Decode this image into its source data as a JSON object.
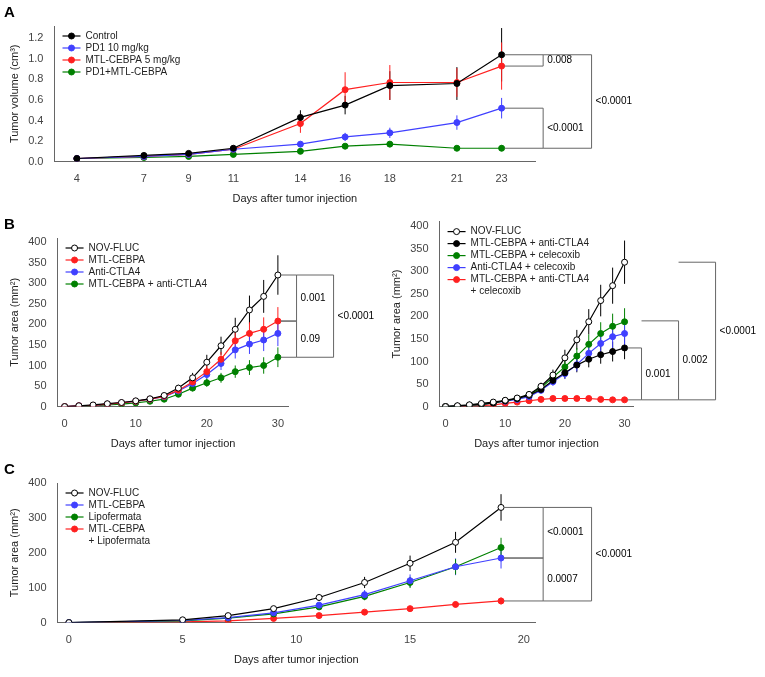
{
  "chart_data": [
    {
      "type": "line",
      "title": "A",
      "xlabel": "Days after tumor injection",
      "ylabel": "Tumor volume (cm³)",
      "x": [
        4,
        7,
        9,
        11,
        14,
        16,
        18,
        21,
        23
      ],
      "xlim": [
        3,
        24.5
      ],
      "xticks": [
        4,
        7,
        9,
        11,
        14,
        16,
        18,
        21,
        23
      ],
      "ylim": [
        0,
        1.32
      ],
      "yticks": [
        {
          "value": 0.0,
          "label": "0.0"
        },
        0.2,
        0.4,
        0.6,
        0.8,
        {
          "value": 1.0,
          "label": "1.0"
        },
        1.2
      ],
      "grid": false,
      "legend": "upper left",
      "series": [
        {
          "name": "Control",
          "color": "#000000",
          "marker": "circle",
          "values": [
            0.03,
            0.06,
            0.08,
            0.13,
            0.43,
            0.55,
            0.74,
            0.76,
            1.04
          ],
          "yerr": [
            0.005,
            0.01,
            0.012,
            0.02,
            0.07,
            0.09,
            0.14,
            0.16,
            0.26
          ]
        },
        {
          "name": "PD1 10 mg/kg",
          "color": "#4040FF",
          "marker": "circle",
          "values": [
            0.03,
            0.05,
            0.07,
            0.12,
            0.17,
            0.24,
            0.28,
            0.38,
            0.52
          ],
          "yerr": [
            0.005,
            0.007,
            0.01,
            0.015,
            0.025,
            0.04,
            0.05,
            0.07,
            0.1
          ]
        },
        {
          "name": "MTL-CEBPA 5 mg/kg",
          "color": "#FF2020",
          "marker": "circle",
          "values": [
            0.03,
            0.05,
            0.07,
            0.12,
            0.37,
            0.7,
            0.77,
            0.77,
            0.93
          ],
          "yerr": [
            0.005,
            0.008,
            0.01,
            0.015,
            0.09,
            0.17,
            0.17,
            0.14,
            0.23
          ]
        },
        {
          "name": "PD1+MTL-CEBPA",
          "color": "#008000",
          "marker": "circle",
          "values": [
            0.03,
            0.04,
            0.05,
            0.07,
            0.1,
            0.15,
            0.17,
            0.13,
            0.13
          ],
          "yerr": [
            0.004,
            0.005,
            0.007,
            0.009,
            0.015,
            0.022,
            0.028,
            0.023,
            0.028
          ]
        }
      ],
      "annotations": [
        {
          "text": "0.008",
          "y": [
            1.04,
            0.93
          ]
        },
        {
          "text": "<0.0001",
          "y": [
            1.04,
            0.13
          ]
        },
        {
          "text": "<0.0001",
          "y": [
            0.52,
            0.13
          ]
        }
      ]
    },
    {
      "type": "line",
      "title": "B",
      "xlabel": "Days after tumor injection",
      "ylabel": "Tumor area (mm²)",
      "x": [
        0,
        2,
        4,
        6,
        8,
        10,
        12,
        14,
        16,
        18,
        20,
        22,
        24,
        26,
        28,
        30
      ],
      "xlim": [
        -1,
        31.5
      ],
      "xticks": [
        0,
        10,
        20,
        30
      ],
      "ylim": [
        0,
        410
      ],
      "yticks": [
        0,
        50,
        100,
        150,
        200,
        250,
        300,
        350,
        400
      ],
      "grid": false,
      "legend": "upper left",
      "series": [
        {
          "name": "NOV-FLUC",
          "color": "#000000",
          "marker": "open_circle",
          "values": [
            0,
            2,
            4,
            7,
            10,
            14,
            19,
            27,
            45,
            70,
            108,
            148,
            188,
            235,
            268,
            320
          ],
          "yerr": [
            0,
            0.5,
            1,
            1.5,
            2,
            3,
            4,
            5,
            8,
            12,
            18,
            22,
            28,
            35,
            40,
            48
          ]
        },
        {
          "name": "MTL-CEBPA",
          "color": "#FF2020",
          "marker": "circle",
          "values": [
            0,
            2,
            3,
            6,
            9,
            13,
            18,
            25,
            40,
            60,
            85,
            115,
            160,
            178,
            188,
            208
          ],
          "yerr": [
            0,
            0.5,
            1,
            1.5,
            2,
            3,
            4,
            5,
            7,
            10,
            14,
            18,
            24,
            27,
            29,
            34
          ]
        },
        {
          "name": "Anti-CTLA4",
          "color": "#4040FF",
          "marker": "circle",
          "values": [
            0,
            2,
            3,
            6,
            9,
            13,
            18,
            24,
            38,
            56,
            78,
            105,
            138,
            152,
            162,
            178
          ],
          "yerr": [
            0,
            0.5,
            1,
            1.5,
            2,
            3,
            4,
            5,
            7,
            9,
            12,
            16,
            21,
            24,
            27,
            31
          ]
        },
        {
          "name": "MTL-CEBPA + anti-CTLA4",
          "color": "#008000",
          "marker": "circle",
          "values": [
            0,
            1,
            2,
            4,
            6,
            9,
            13,
            18,
            30,
            45,
            58,
            70,
            85,
            95,
            100,
            120
          ],
          "yerr": [
            0,
            0.3,
            0.6,
            1,
            1.5,
            2,
            3,
            4,
            6,
            8,
            10,
            12,
            15,
            18,
            20,
            24
          ]
        }
      ],
      "annotations": [
        {
          "text": "0.001",
          "y": [
            320,
            208
          ]
        },
        {
          "text": "0.09",
          "y": [
            208,
            120
          ]
        },
        {
          "text": "<0.0001",
          "y": [
            320,
            120
          ]
        }
      ]
    },
    {
      "type": "line",
      "xlabel": "Days after tumor injection",
      "ylabel": "Tumor area (mm²)",
      "x": [
        0,
        2,
        4,
        6,
        8,
        10,
        12,
        14,
        16,
        18,
        20,
        22,
        24,
        26,
        28,
        30
      ],
      "xlim": [
        -1,
        31.5
      ],
      "xticks": [
        0,
        10,
        20,
        30
      ],
      "ylim": [
        0,
        410
      ],
      "yticks": [
        0,
        50,
        100,
        150,
        200,
        250,
        300,
        350,
        400
      ],
      "grid": false,
      "legend": "upper left",
      "series": [
        {
          "name": "NOV-FLUC",
          "color": "#000000",
          "marker": "open_circle",
          "values": [
            0,
            2,
            4,
            7,
            10,
            14,
            19,
            27,
            45,
            70,
            108,
            148,
            188,
            235,
            268,
            320
          ],
          "yerr": [
            0,
            0.5,
            1,
            1.5,
            2,
            3,
            4,
            5,
            8,
            12,
            18,
            22,
            28,
            35,
            40,
            48
          ]
        },
        {
          "name": "MTL-CEBPA + anti-CTLA4",
          "color": "#000000",
          "marker": "circle",
          "values": [
            0,
            1,
            3,
            5,
            8,
            13,
            18,
            25,
            38,
            58,
            75,
            92,
            105,
            115,
            122,
            130
          ],
          "yerr": [
            0,
            0.3,
            0.8,
            1.2,
            2,
            3,
            4,
            5,
            7,
            10,
            13,
            16,
            18,
            20,
            22,
            25
          ]
        },
        {
          "name": "MTL-CEBPA + celecoxib",
          "color": "#008000",
          "marker": "circle",
          "values": [
            0,
            1,
            3,
            5,
            8,
            13,
            18,
            26,
            42,
            65,
            88,
            112,
            138,
            162,
            178,
            188
          ],
          "yerr": [
            0,
            0.3,
            0.8,
            1.2,
            2,
            3,
            4,
            5,
            7,
            10,
            14,
            18,
            22,
            25,
            28,
            30
          ]
        },
        {
          "name": "Anti-CTLA4 + celecoxib",
          "color": "#4040FF",
          "marker": "circle",
          "values": [
            0,
            1,
            3,
            5,
            8,
            12,
            16,
            22,
            36,
            55,
            73,
            93,
            118,
            140,
            155,
            162
          ],
          "yerr": [
            0,
            0.3,
            0.8,
            1.2,
            2,
            3,
            4,
            5,
            7,
            9,
            12,
            15,
            18,
            22,
            25,
            28
          ]
        },
        {
          "name": "MTL-CEBPA + anti-CTLA4\n+ celecoxib",
          "color": "#FF2020",
          "marker": "circle",
          "values": [
            0,
            0.5,
            1,
            2,
            4,
            7,
            10,
            13,
            16,
            18,
            18,
            18,
            18,
            16,
            15,
            15
          ],
          "yerr": [
            0,
            0.2,
            0.3,
            0.5,
            0.8,
            1.2,
            1.8,
            2.5,
            3,
            3,
            3,
            3,
            3,
            2.5,
            2.5,
            2.5
          ]
        }
      ],
      "annotations": [
        {
          "text": "0.001",
          "y": [
            130,
            15
          ]
        },
        {
          "text": "0.002",
          "y": [
            190,
            15
          ]
        },
        {
          "text": "<0.0001",
          "y": [
            320,
            15
          ]
        }
      ]
    },
    {
      "type": "line",
      "title": "C",
      "xlabel": "Days after tumor injection",
      "ylabel": "Tumor area (mm²)",
      "x": [
        0,
        5,
        7,
        9,
        11,
        13,
        15,
        17,
        19
      ],
      "xlim": [
        -0.5,
        20.5
      ],
      "xticks": [
        0,
        5,
        10,
        15,
        20
      ],
      "ylim": [
        0,
        400
      ],
      "yticks": [
        0,
        100,
        200,
        300,
        400
      ],
      "grid": false,
      "legend": "upper left",
      "series": [
        {
          "name": "NOV-FLUC",
          "color": "#000000",
          "marker": "open_circle",
          "values": [
            0,
            8,
            20,
            40,
            72,
            115,
            170,
            230,
            330
          ],
          "yerr": [
            0,
            1.5,
            3,
            6,
            10,
            16,
            22,
            30,
            38
          ]
        },
        {
          "name": "MTL-CEBPA",
          "color": "#4040FF",
          "marker": "circle",
          "values": [
            0,
            6,
            14,
            28,
            50,
            80,
            120,
            160,
            185
          ],
          "yerr": [
            0,
            1.5,
            3,
            5,
            8,
            13,
            18,
            24,
            30
          ]
        },
        {
          "name": "Lipofermata",
          "color": "#008000",
          "marker": "circle",
          "values": [
            0,
            5,
            13,
            25,
            45,
            75,
            115,
            160,
            215
          ],
          "yerr": [
            0,
            1.5,
            2.5,
            4,
            7,
            11,
            16,
            22,
            28
          ]
        },
        {
          "name": "MTL-CEBPA\n+ Lipofermata",
          "color": "#FF2020",
          "marker": "circle",
          "values": [
            0,
            2,
            5,
            12,
            20,
            30,
            40,
            52,
            62
          ],
          "yerr": [
            0,
            0.5,
            1,
            2,
            3,
            5,
            6,
            8,
            10
          ]
        }
      ],
      "annotations": [
        {
          "text": "<0.0001",
          "y": [
            330,
            185
          ]
        },
        {
          "text": "0.0007",
          "y": [
            185,
            62
          ]
        },
        {
          "text": "<0.0001",
          "y": [
            330,
            62
          ]
        }
      ]
    }
  ]
}
